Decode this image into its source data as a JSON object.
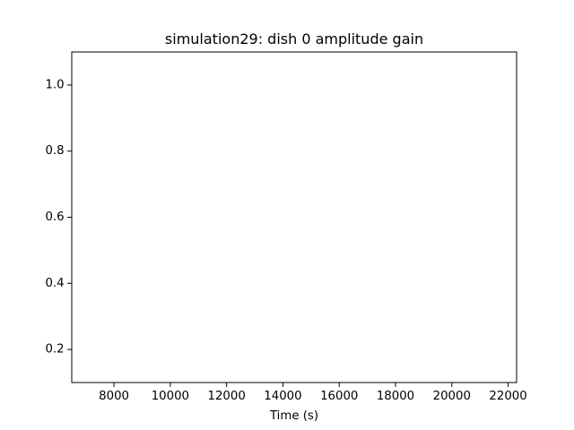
{
  "figure": {
    "background": "#ffffff"
  },
  "chart_data": {
    "type": "line",
    "title": "simulation29: dish 0 amplitude gain",
    "xlabel": "Time (s)",
    "ylabel": "",
    "xlim": [
      6500,
      22300
    ],
    "ylim": [
      0.1,
      1.1
    ],
    "x_ticks": [
      8000,
      10000,
      12000,
      14000,
      16000,
      18000,
      20000,
      22000
    ],
    "x_tick_labels": [
      "8000",
      "10000",
      "12000",
      "14000",
      "16000",
      "18000",
      "20000",
      "22000"
    ],
    "y_ticks": [
      0.2,
      0.4,
      0.6,
      0.8,
      1.0
    ],
    "y_tick_labels": [
      "0.2",
      "0.4",
      "0.6",
      "0.8",
      "1.0"
    ],
    "series": [],
    "grid": false,
    "legend": "none",
    "colors": {
      "axes": "#000000",
      "text": "#000000",
      "background": "#ffffff"
    }
  }
}
